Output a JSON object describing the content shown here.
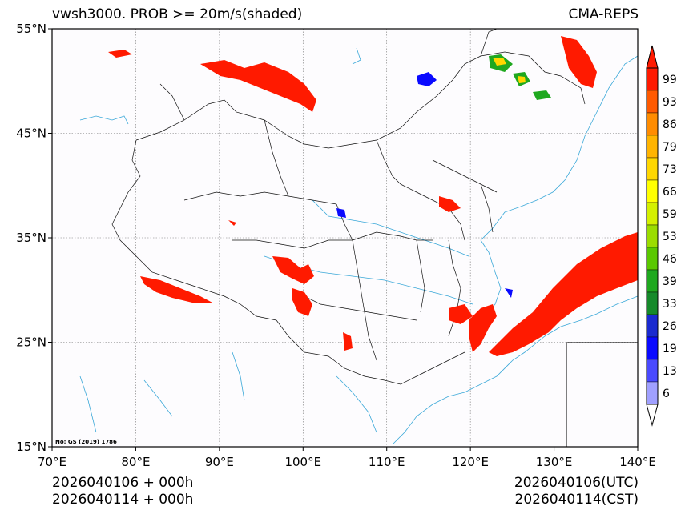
{
  "title": "vwsh3000. PROB >= 20m/s(shaded)",
  "source": "CMA-REPS",
  "map_note": "No: GS (2019) 1786",
  "footer": {
    "left_line1": "2026040106  +  000h",
    "left_line2": "2026040114  +  000h",
    "right_line1": "2026040106(UTC)",
    "right_line2": "2026040114(CST)"
  },
  "lat_labels": [
    "55°N",
    "45°N",
    "35°N",
    "25°N",
    "15°N"
  ],
  "lon_labels": [
    "70°E",
    "80°E",
    "90°E",
    "100°E",
    "110°E",
    "120°E",
    "130°E",
    "140°E"
  ],
  "colorbar": {
    "labels": [
      "99",
      "93",
      "86",
      "79",
      "73",
      "66",
      "59",
      "53",
      "46",
      "39",
      "33",
      "26",
      "19",
      "13",
      "6"
    ],
    "colors": [
      "#ff1a00",
      "#ff5a00",
      "#ff8c00",
      "#ffb400",
      "#ffd700",
      "#ffff00",
      "#d4f000",
      "#9bdc00",
      "#5ac800",
      "#1fa81f",
      "#168a2a",
      "#1a2ad0",
      "#0a0aff",
      "#4a4aff",
      "#a0a0ff"
    ],
    "extend_top_color": "#ff1a00",
    "extend_bottom_color": "#ffffff"
  },
  "colors": {
    "shade_high": "#ff1a00",
    "boundary": "#000000",
    "river_coast": "#3aa8d8"
  }
}
